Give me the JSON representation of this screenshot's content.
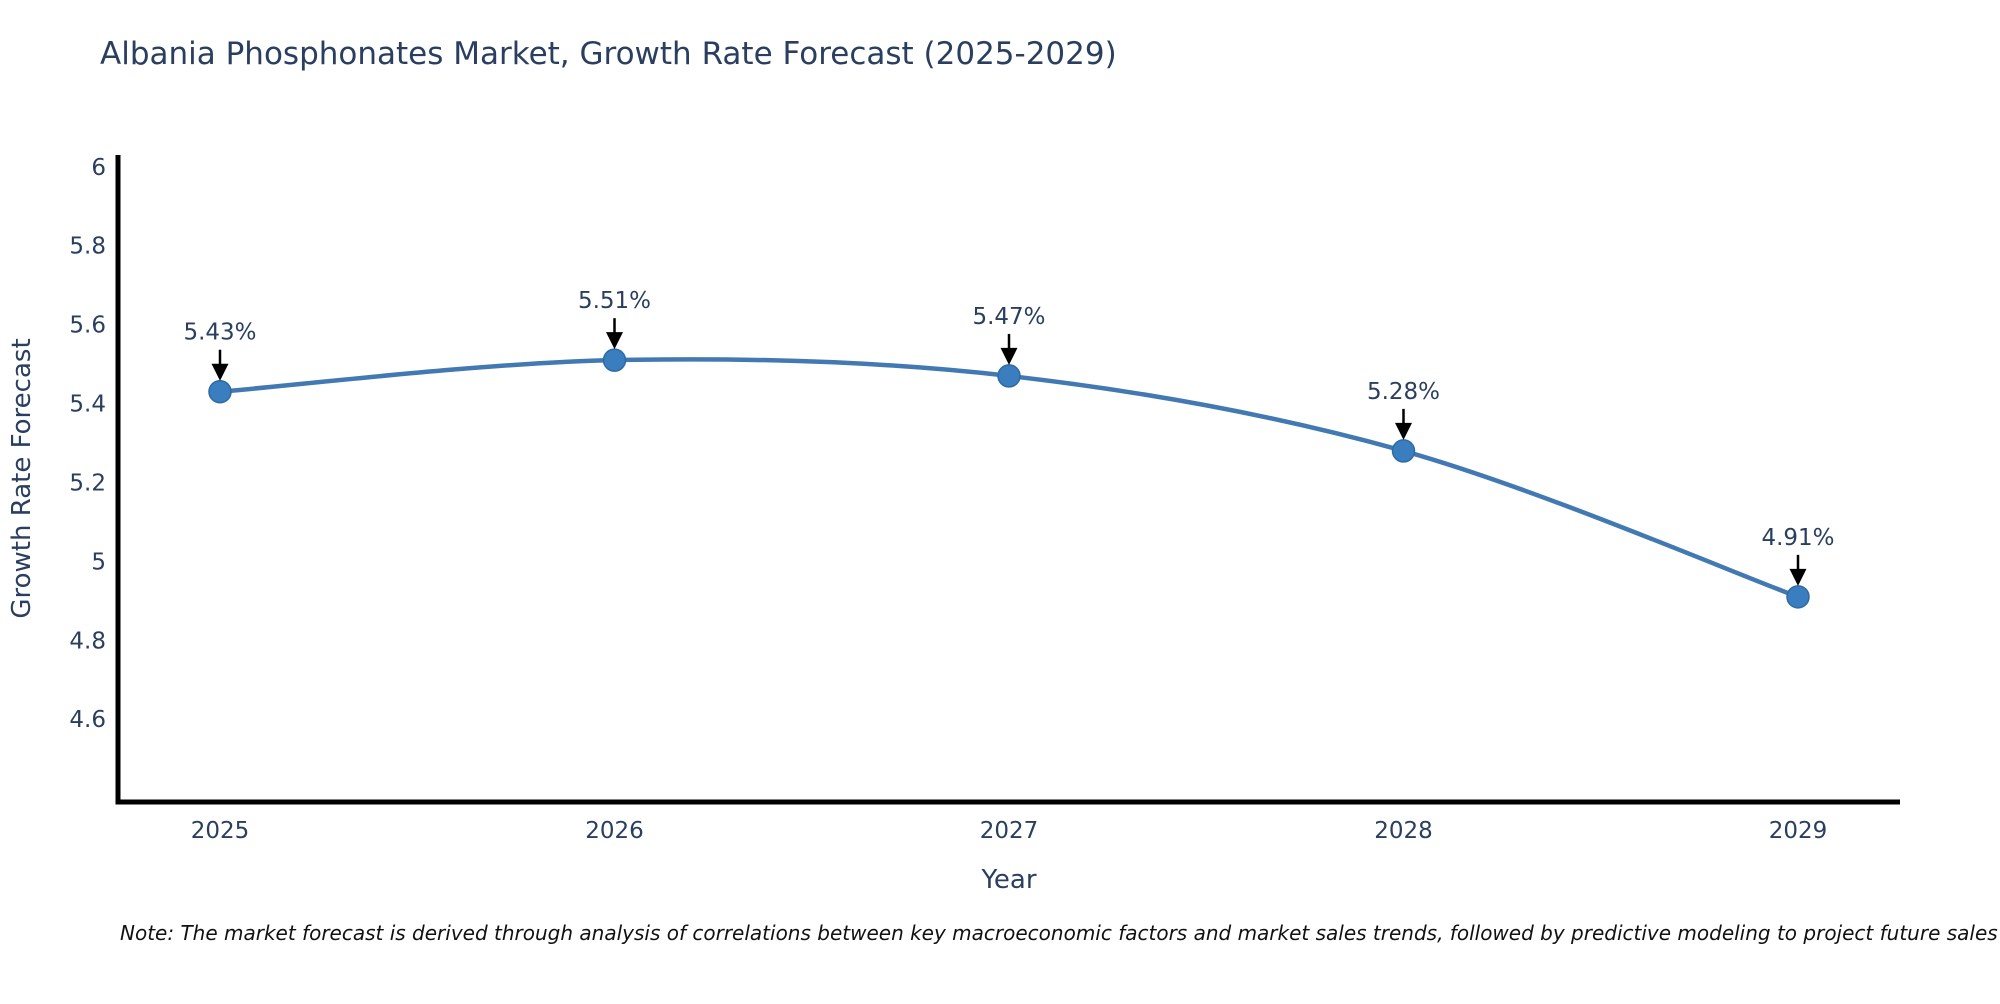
{
  "title": "Albania Phosphonates Market, Growth Rate Forecast (2025-2029)",
  "note": "Note: The market forecast is derived through analysis of correlations between key macroeconomic factors and market sales trends, followed by predictive modeling to project future sales",
  "chart_data": {
    "type": "line",
    "title": "Albania Phosphonates Market, Growth Rate Forecast (2025-2029)",
    "x": [
      2025,
      2026,
      2027,
      2028,
      2029
    ],
    "series": [
      {
        "name": "Growth Rate Forecast",
        "values": [
          5.43,
          5.51,
          5.47,
          5.28,
          4.91
        ],
        "point_labels": [
          "5.43%",
          "5.51%",
          "5.47%",
          "5.28%",
          "4.91%"
        ]
      }
    ],
    "xlabel": "Year",
    "ylabel": "Growth Rate Forecast",
    "yticks": [
      6,
      5.8,
      5.6,
      5.4,
      5.2,
      5,
      4.8,
      4.6
    ],
    "ylim": [
      4.39,
      6.03
    ],
    "grid": false,
    "legend": "none",
    "line_shape": "spline",
    "annotation_style": "value-label-with-down-arrow",
    "colors": {
      "line": "#4279b3",
      "marker": "#3a7ec0",
      "marker_edge": "#2f6aa3",
      "axis": "#000000",
      "text": "#2a3f5f",
      "arrow": "#000000",
      "note_text": "#111111",
      "background": "#ffffff"
    }
  }
}
